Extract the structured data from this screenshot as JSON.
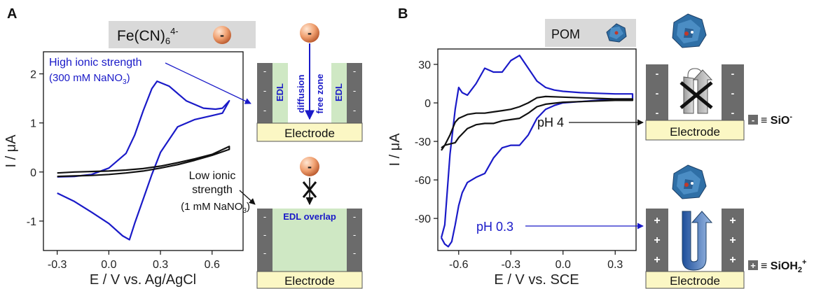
{
  "colors": {
    "blue": "#1a1ac8",
    "black": "#111111",
    "wall_gray": "#6b6b6b",
    "electrode_fill": "#fbf7c4",
    "edl_green": "#cfe8c4",
    "header_gray": "#d9d9d9",
    "pom_blue": "#2f6fa6"
  },
  "panel_a": {
    "letter": "A",
    "species_main": "Fe(CN)",
    "species_sub": "6",
    "species_sup": "4-",
    "ion_sign": "-",
    "high_label": "High ionic strength",
    "high_conc_main": "(300 mM NaNO",
    "high_conc_sub": "3",
    "high_conc_end": ")",
    "low_label_1": "Low ionic",
    "low_label_2": "strength",
    "low_conc_main": "(1 mM NaNO",
    "low_conc_sub": "3",
    "low_conc_end": ")",
    "edl_left": "EDL",
    "edl_right": "EDL",
    "diffusion_1": "diffusion",
    "diffusion_2": "free zone",
    "edl_overlap": "EDL overlap",
    "electrode_top": "Electrode",
    "electrode_bottom": "Electrode",
    "wall_sign": "-"
  },
  "panel_b": {
    "letter": "B",
    "species": "POM",
    "ph4": "pH 4",
    "ph03": "pH 0.3",
    "electrode_top": "Electrode",
    "electrode_bottom": "Electrode",
    "legend_neg_sign": "-",
    "legend_neg_text": "≡ SiO",
    "legend_neg_sup": "-",
    "legend_pos_sign": "+",
    "legend_pos_text": "≡ SiOH",
    "legend_pos_sub": "2",
    "legend_pos_sup": "+",
    "wall_neg": "-",
    "wall_pos": "+"
  },
  "chart_data": [
    {
      "type": "line",
      "xlabel": "E / V vs. Ag/AgCl",
      "ylabel": "I / μA",
      "xlim": [
        -0.38,
        0.78
      ],
      "ylim": [
        -1.6,
        2.45
      ],
      "xticks": [
        -0.3,
        0.0,
        0.3,
        0.6
      ],
      "xtick_labels": [
        "-0.3",
        "0.0",
        "0.3",
        "0.6"
      ],
      "yticks": [
        -1,
        0,
        1,
        2
      ],
      "ytick_labels": [
        "-1",
        "0",
        "1",
        "2"
      ],
      "grid": false,
      "series": [
        {
          "color": "#1a1ac8",
          "x": [
            -0.3,
            -0.2,
            -0.1,
            0.0,
            0.1,
            0.15,
            0.2,
            0.25,
            0.28,
            0.35,
            0.45,
            0.55,
            0.62,
            0.66,
            0.7,
            0.66,
            0.6,
            0.5,
            0.4,
            0.3,
            0.25,
            0.2,
            0.15,
            0.12,
            0.08,
            0.0,
            -0.1,
            -0.2,
            -0.3
          ],
          "y": [
            -0.1,
            -0.09,
            -0.05,
            0.08,
            0.38,
            0.75,
            1.25,
            1.7,
            1.85,
            1.75,
            1.45,
            1.3,
            1.28,
            1.3,
            1.45,
            1.2,
            1.15,
            1.07,
            0.92,
            0.4,
            -0.05,
            -0.55,
            -1.05,
            -1.38,
            -1.3,
            -1.05,
            -0.82,
            -0.6,
            -0.43
          ]
        },
        {
          "color": "#111111",
          "x": [
            -0.3,
            -0.2,
            -0.1,
            0.0,
            0.1,
            0.2,
            0.3,
            0.4,
            0.5,
            0.6,
            0.7,
            0.7,
            0.6,
            0.5,
            0.4,
            0.3,
            0.2,
            0.1,
            0.0,
            -0.1,
            -0.2,
            -0.3
          ],
          "y": [
            -0.02,
            0.0,
            0.01,
            0.02,
            0.04,
            0.07,
            0.12,
            0.19,
            0.27,
            0.36,
            0.52,
            0.46,
            0.34,
            0.24,
            0.15,
            0.08,
            0.02,
            -0.02,
            -0.05,
            -0.07,
            -0.08,
            -0.09
          ]
        }
      ]
    },
    {
      "type": "line",
      "xlabel": "E / V vs. SCE",
      "ylabel": "I / μA",
      "xlim": [
        -0.72,
        0.42
      ],
      "ylim": [
        -115,
        42
      ],
      "xticks": [
        -0.6,
        -0.3,
        0.0,
        0.3
      ],
      "xtick_labels": [
        "-0.6",
        "-0.3",
        "0.0",
        "0.3"
      ],
      "yticks": [
        -90,
        -60,
        -30,
        0,
        30
      ],
      "ytick_labels": [
        "-90",
        "-60",
        "-30",
        "0",
        "30"
      ],
      "grid": false,
      "series": [
        {
          "color": "#1a1ac8",
          "x": [
            -0.7,
            -0.68,
            -0.65,
            -0.62,
            -0.6,
            -0.58,
            -0.55,
            -0.5,
            -0.45,
            -0.4,
            -0.35,
            -0.3,
            -0.25,
            -0.2,
            -0.15,
            -0.1,
            -0.05,
            0.0,
            0.1,
            0.2,
            0.3,
            0.4,
            0.4,
            0.3,
            0.2,
            0.1,
            0.0,
            -0.05,
            -0.1,
            -0.15,
            -0.2,
            -0.25,
            -0.3,
            -0.35,
            -0.4,
            -0.45,
            -0.5,
            -0.55,
            -0.58,
            -0.6,
            -0.62,
            -0.64,
            -0.66,
            -0.68,
            -0.7
          ],
          "y": [
            -105,
            -95,
            -40,
            -5,
            12,
            8,
            6,
            15,
            27,
            24,
            24,
            33,
            37,
            27,
            17,
            12,
            10,
            9,
            8,
            7.5,
            7,
            7,
            3,
            3,
            2,
            1,
            0,
            -2,
            -5,
            -12,
            -25,
            -33,
            -33,
            -35,
            -43,
            -55,
            -58,
            -62,
            -70,
            -80,
            -95,
            -108,
            -112,
            -110,
            -105
          ]
        },
        {
          "color": "#111111",
          "x": [
            -0.7,
            -0.68,
            -0.65,
            -0.62,
            -0.6,
            -0.55,
            -0.5,
            -0.45,
            -0.4,
            -0.35,
            -0.3,
            -0.25,
            -0.2,
            -0.15,
            -0.1,
            0.0,
            0.1,
            0.2,
            0.3,
            0.4,
            0.4,
            0.3,
            0.2,
            0.1,
            0.0,
            -0.1,
            -0.15,
            -0.2,
            -0.25,
            -0.3,
            -0.35,
            -0.4,
            -0.45,
            -0.5,
            -0.55,
            -0.6,
            -0.62,
            -0.65,
            -0.68,
            -0.7
          ],
          "y": [
            -37,
            -33,
            -25,
            -15,
            -12,
            -9,
            -8,
            -8,
            -7,
            -6,
            -5,
            -3,
            0,
            4,
            5,
            4.5,
            4,
            3.5,
            3,
            3,
            2,
            2,
            1.5,
            1,
            0.5,
            -1,
            -3,
            -8,
            -12,
            -13,
            -14,
            -16,
            -16,
            -17,
            -20,
            -27,
            -31,
            -32,
            -33,
            -35
          ]
        }
      ]
    }
  ]
}
